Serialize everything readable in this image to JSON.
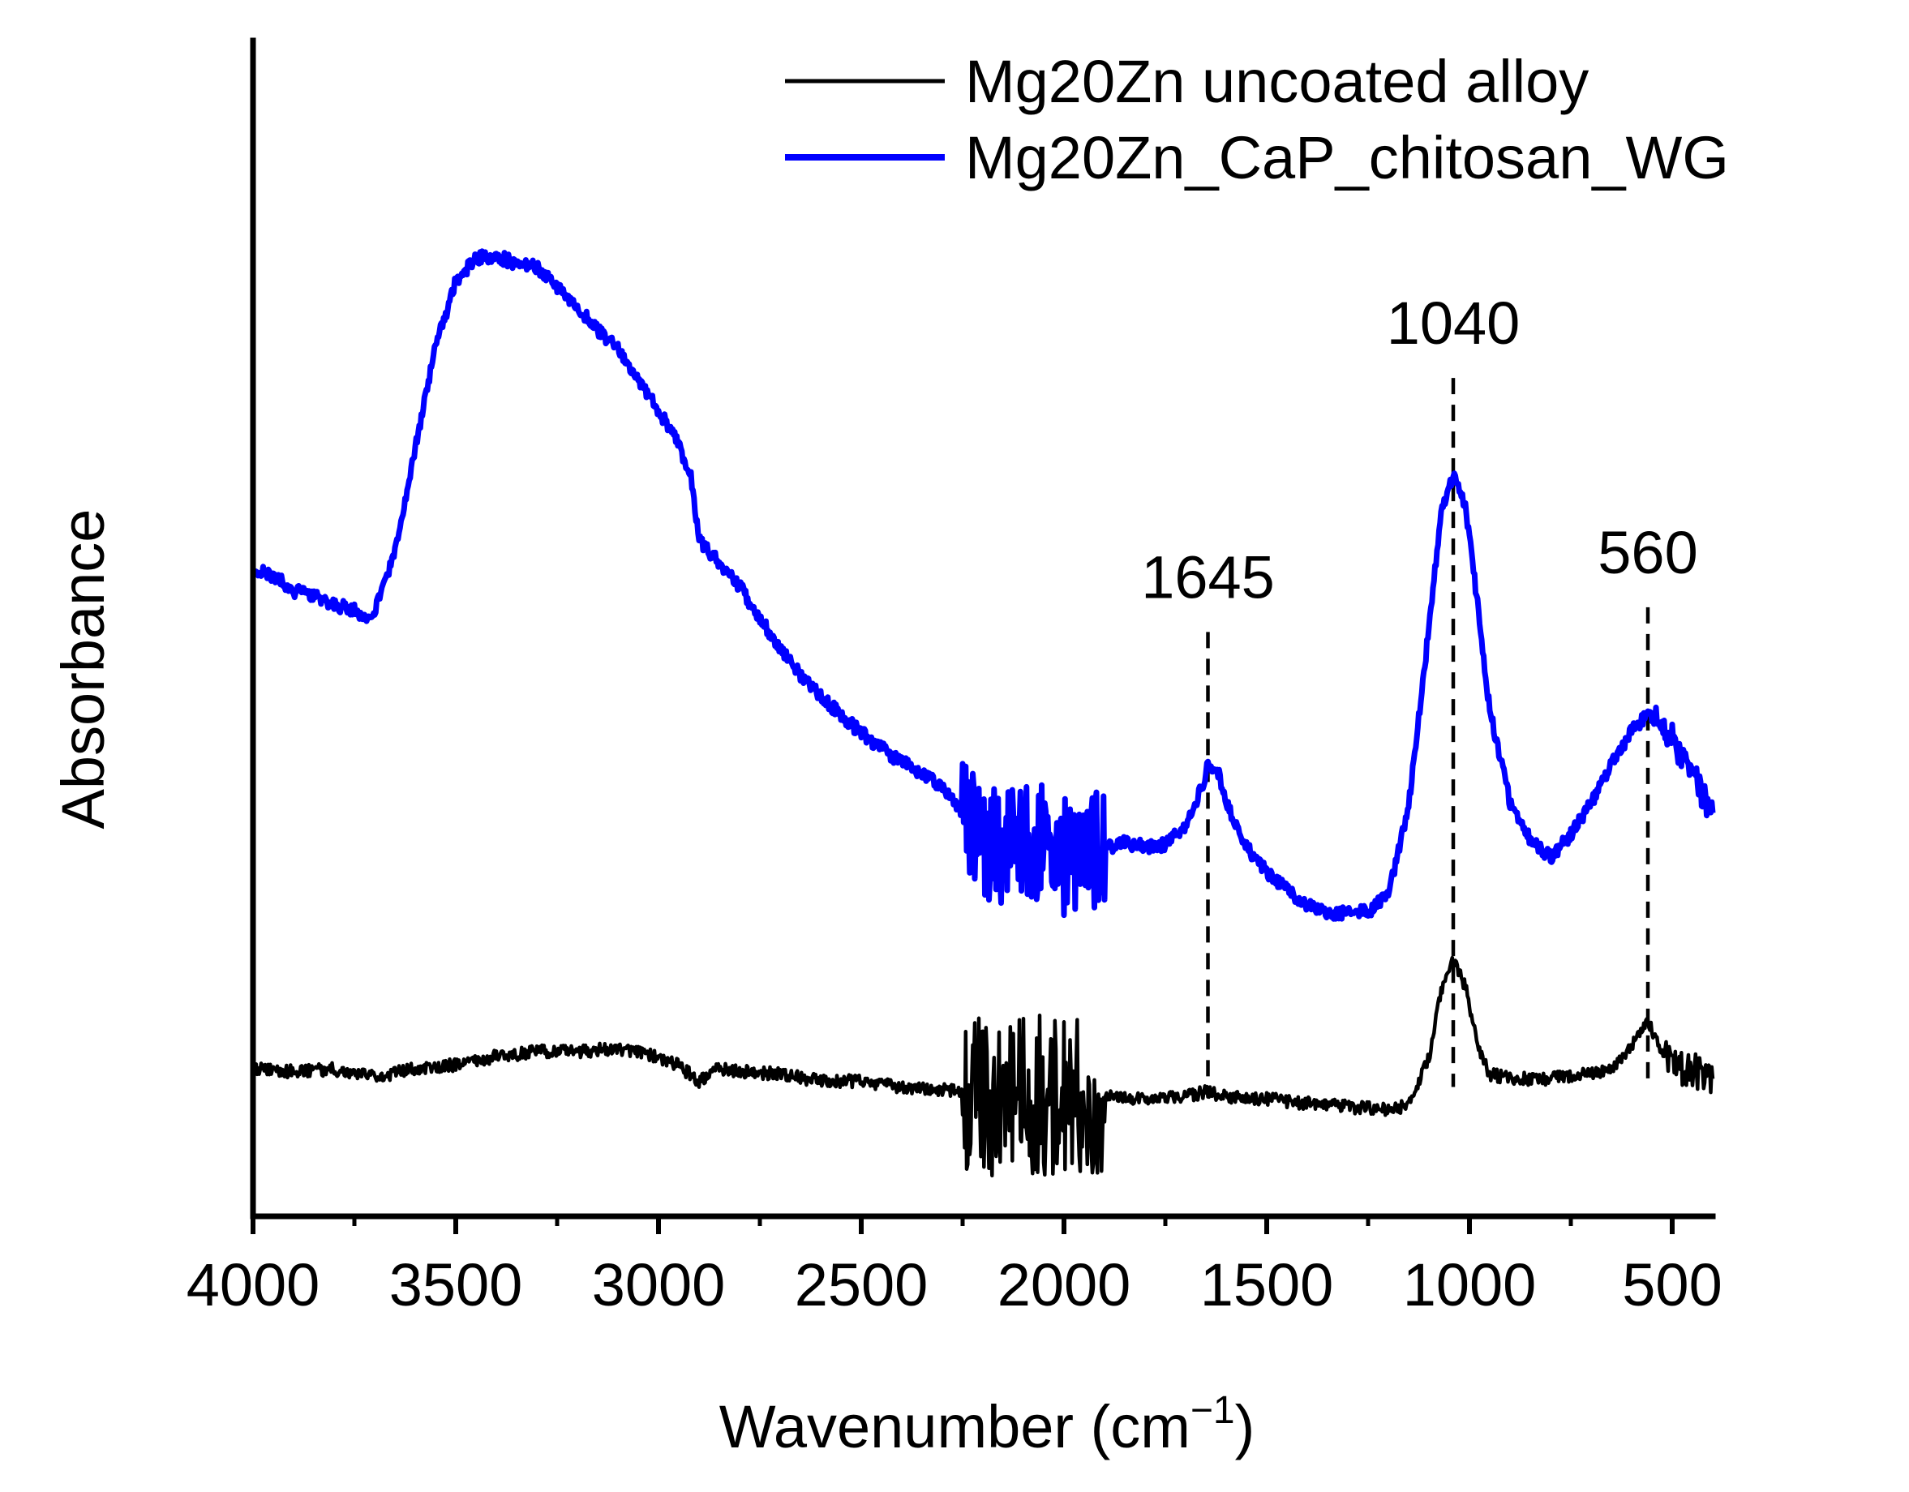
{
  "chart_data": {
    "type": "line",
    "title": "",
    "xlabel": "Wavenumber (cm",
    "xlabel_sup": "−1",
    "xlabel_close": ")",
    "ylabel": "Absorbance",
    "xlim": [
      4000,
      400
    ],
    "ylim": [
      0,
      100
    ],
    "x_reversed": true,
    "grid": false,
    "legend_position": "top-right",
    "xticks": [
      {
        "value": 4000,
        "label": "4000"
      },
      {
        "value": 3500,
        "label": "3500"
      },
      {
        "value": 3000,
        "label": "3000"
      },
      {
        "value": 2500,
        "label": "2500"
      },
      {
        "value": 2000,
        "label": "2000"
      },
      {
        "value": 1500,
        "label": "1500"
      },
      {
        "value": 1000,
        "label": "1000"
      },
      {
        "value": 500,
        "label": "500"
      }
    ],
    "minor_xticks": [
      3750,
      3250,
      2750,
      2250,
      1750,
      1250,
      750
    ],
    "series": [
      {
        "name": "Mg20Zn uncoated alloy",
        "color": "#000000",
        "noise_regions": [
          {
            "from": 2250,
            "to": 1900,
            "amplitude": 14
          },
          {
            "from": 520,
            "to": 400,
            "amplitude": 3
          }
        ],
        "points": [
          [
            4000,
            12.6
          ],
          [
            3900,
            12.3
          ],
          [
            3800,
            12.5
          ],
          [
            3700,
            11.8
          ],
          [
            3600,
            12.6
          ],
          [
            3500,
            12.9
          ],
          [
            3400,
            13.6
          ],
          [
            3300,
            14.0
          ],
          [
            3200,
            14.0
          ],
          [
            3100,
            14.3
          ],
          [
            3000,
            13.5
          ],
          [
            2950,
            12.8
          ],
          [
            2900,
            11.5
          ],
          [
            2850,
            12.6
          ],
          [
            2800,
            12.3
          ],
          [
            2700,
            12.1
          ],
          [
            2600,
            11.5
          ],
          [
            2500,
            11.5
          ],
          [
            2400,
            11.0
          ],
          [
            2300,
            10.8
          ],
          [
            2200,
            10.5
          ],
          [
            2100,
            10.2
          ],
          [
            2000,
            10.6
          ],
          [
            1900,
            10.2
          ],
          [
            1800,
            10.0
          ],
          [
            1700,
            10.2
          ],
          [
            1645,
            10.6
          ],
          [
            1600,
            10.2
          ],
          [
            1500,
            10.0
          ],
          [
            1400,
            9.6
          ],
          [
            1300,
            9.3
          ],
          [
            1200,
            9.1
          ],
          [
            1150,
            9.4
          ],
          [
            1100,
            13.5
          ],
          [
            1070,
            19.0
          ],
          [
            1040,
            21.8
          ],
          [
            1010,
            19.5
          ],
          [
            980,
            14.5
          ],
          [
            950,
            12.1
          ],
          [
            900,
            11.7
          ],
          [
            800,
            11.7
          ],
          [
            700,
            12.1
          ],
          [
            650,
            12.6
          ],
          [
            600,
            14.5
          ],
          [
            560,
            16.6
          ],
          [
            530,
            14.5
          ],
          [
            500,
            12.6
          ],
          [
            450,
            12.6
          ],
          [
            400,
            11.3
          ]
        ]
      },
      {
        "name": "Mg20Zn_CaP_chitosan_WG",
        "color": "#0000ff",
        "noise_regions": [
          {
            "from": 2250,
            "to": 1900,
            "amplitude": 10
          },
          {
            "from": 540,
            "to": 400,
            "amplitude": 2.5
          }
        ],
        "points": [
          [
            4000,
            55.1
          ],
          [
            3950,
            54.5
          ],
          [
            3900,
            53.2
          ],
          [
            3850,
            52.7
          ],
          [
            3800,
            52.0
          ],
          [
            3750,
            51.6
          ],
          [
            3720,
            50.5
          ],
          [
            3700,
            51.6
          ],
          [
            3650,
            56.5
          ],
          [
            3600,
            65.4
          ],
          [
            3550,
            73.9
          ],
          [
            3500,
            79.5
          ],
          [
            3450,
            81.5
          ],
          [
            3400,
            81.7
          ],
          [
            3350,
            81.0
          ],
          [
            3300,
            80.8
          ],
          [
            3250,
            79.0
          ],
          [
            3200,
            77.4
          ],
          [
            3150,
            75.4
          ],
          [
            3100,
            73.8
          ],
          [
            3050,
            71.1
          ],
          [
            3000,
            68.6
          ],
          [
            2950,
            65.6
          ],
          [
            2920,
            63.0
          ],
          [
            2900,
            57.5
          ],
          [
            2850,
            55.6
          ],
          [
            2800,
            53.6
          ],
          [
            2750,
            50.8
          ],
          [
            2700,
            48.4
          ],
          [
            2650,
            46.1
          ],
          [
            2600,
            44.3
          ],
          [
            2550,
            42.6
          ],
          [
            2500,
            41.1
          ],
          [
            2450,
            39.8
          ],
          [
            2400,
            38.6
          ],
          [
            2350,
            37.7
          ],
          [
            2300,
            36.4
          ],
          [
            2250,
            34.3
          ],
          [
            2200,
            31.9
          ],
          [
            2150,
            31.0
          ],
          [
            2100,
            31.8
          ],
          [
            2050,
            32.0
          ],
          [
            2000,
            30.6
          ],
          [
            1950,
            30.9
          ],
          [
            1900,
            31.3
          ],
          [
            1850,
            31.8
          ],
          [
            1800,
            31.4
          ],
          [
            1750,
            31.6
          ],
          [
            1700,
            33.2
          ],
          [
            1660,
            36.5
          ],
          [
            1645,
            38.5
          ],
          [
            1620,
            37.8
          ],
          [
            1600,
            35.2
          ],
          [
            1550,
            31.4
          ],
          [
            1500,
            29.3
          ],
          [
            1450,
            27.7
          ],
          [
            1400,
            26.4
          ],
          [
            1350,
            25.7
          ],
          [
            1300,
            25.8
          ],
          [
            1250,
            25.9
          ],
          [
            1200,
            27.3
          ],
          [
            1150,
            35.0
          ],
          [
            1100,
            50.0
          ],
          [
            1070,
            60.0
          ],
          [
            1040,
            62.9
          ],
          [
            1010,
            60.5
          ],
          [
            980,
            52.0
          ],
          [
            950,
            43.0
          ],
          [
            900,
            35.2
          ],
          [
            850,
            32.0
          ],
          [
            800,
            30.5
          ],
          [
            750,
            32.5
          ],
          [
            700,
            35.2
          ],
          [
            650,
            38.4
          ],
          [
            600,
            41.3
          ],
          [
            560,
            42.6
          ],
          [
            520,
            41.8
          ],
          [
            490,
            40.0
          ],
          [
            460,
            38.0
          ],
          [
            430,
            36.3
          ],
          [
            400,
            33.9
          ]
        ]
      }
    ],
    "annotations": [
      {
        "label": "1645",
        "x": 1645,
        "line_top": 49.7,
        "line_bottom": 11.0
      },
      {
        "label": "1040",
        "x": 1040,
        "line_top": 71.3,
        "line_bottom": 11.0
      },
      {
        "label": "560",
        "x": 560,
        "line_top": 51.8,
        "line_bottom": 11.0
      }
    ]
  }
}
